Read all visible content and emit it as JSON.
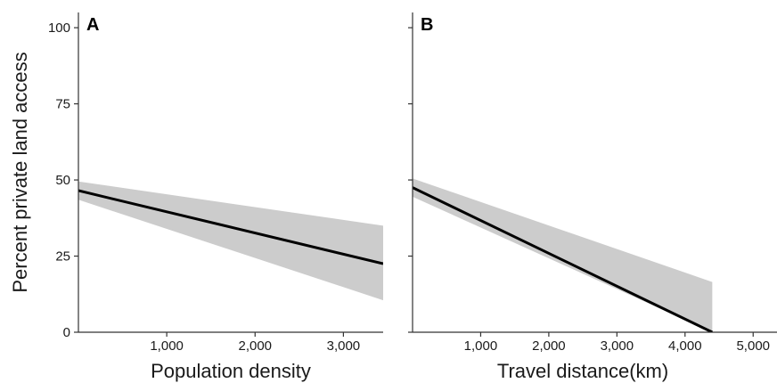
{
  "chart_data": [
    {
      "type": "line",
      "panel_label": "A",
      "xlabel": "Population density",
      "ylabel": "Percent private land access",
      "xlim": [
        0,
        3450
      ],
      "ylim": [
        0,
        105
      ],
      "xticks": [
        1000,
        2000,
        3000
      ],
      "xtick_labels": [
        "1,000",
        "2,000",
        "3,000"
      ],
      "yticks": [
        0,
        25,
        50,
        75,
        100
      ],
      "ytick_labels": [
        "0",
        "25",
        "50",
        "75",
        "100"
      ],
      "series": [
        {
          "x": [
            0,
            3450
          ],
          "y": [
            46.5,
            22.5
          ],
          "ci_lower": [
            43.5,
            10.5
          ],
          "ci_upper": [
            49.5,
            35.0
          ]
        }
      ],
      "grid": false,
      "line_color": "#000000",
      "ribbon_color": "#cccccc"
    },
    {
      "type": "line",
      "panel_label": "B",
      "xlabel": "Travel distance(km)",
      "ylabel": "",
      "xlim": [
        0,
        5350
      ],
      "ylim": [
        0,
        105
      ],
      "xticks": [
        1000,
        2000,
        3000,
        4000,
        5000
      ],
      "xtick_labels": [
        "1,000",
        "2,000",
        "3,000",
        "4,000",
        "5,000"
      ],
      "yticks": [
        0,
        25,
        50,
        75,
        100
      ],
      "ytick_labels": [],
      "series": [
        {
          "x": [
            0,
            4400
          ],
          "y": [
            47.5,
            0
          ],
          "ci_lower": [
            44.5,
            0
          ],
          "ci_upper": [
            50.5,
            16.5
          ]
        }
      ],
      "grid": false,
      "line_color": "#000000",
      "ribbon_color": "#cccccc"
    }
  ]
}
